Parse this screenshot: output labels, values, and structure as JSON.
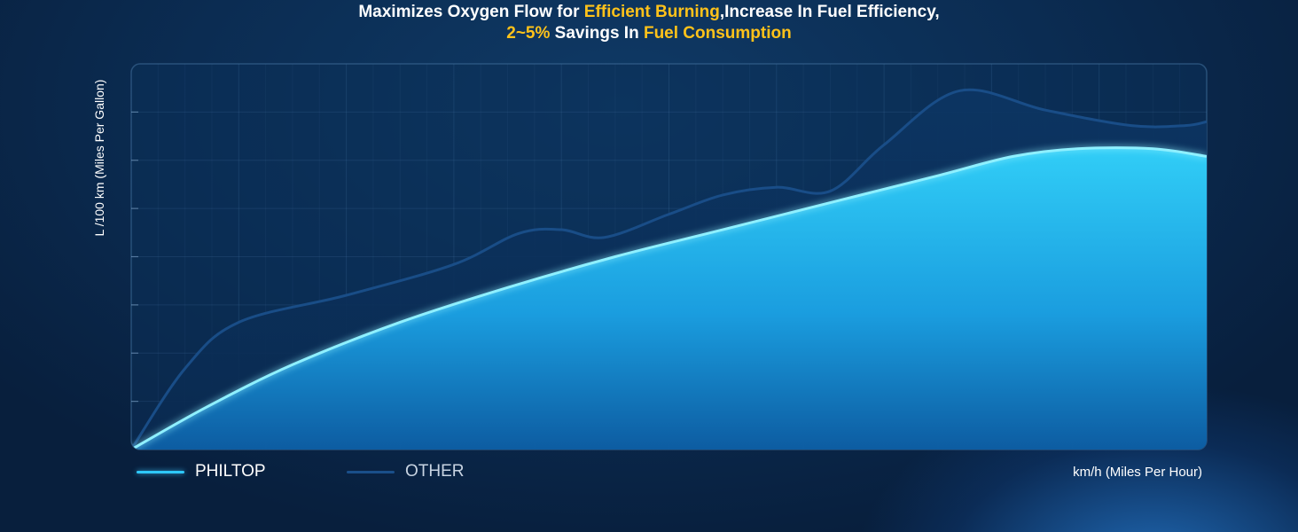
{
  "headline": {
    "line1": [
      {
        "text": "Maximizes Oxygen Flow for ",
        "highlight": false
      },
      {
        "text": "Efficient Burning",
        "highlight": true
      },
      {
        "text": ",Increase In Fuel Efficiency,",
        "highlight": false
      }
    ],
    "line2": [
      {
        "text": "2~5%",
        "highlight": true
      },
      {
        "text": " Savings In ",
        "highlight": false
      },
      {
        "text": "Fuel Consumption",
        "highlight": true
      }
    ]
  },
  "colors": {
    "highlight": "#ffc21a",
    "philtop": "#2ec8ff",
    "other": "#1a4f8a"
  },
  "chart_data": {
    "type": "area",
    "xlabel": "km/h (Miles Per Hour)",
    "ylabel": "L /100 km (Miles Per Gallon)",
    "xlim": [
      0,
      100
    ],
    "ylim": [
      0,
      100
    ],
    "grid": true,
    "legend_position": "bottom-left",
    "series": [
      {
        "name": "PHILTOP",
        "x": [
          0,
          7,
          15,
          25,
          35,
          45,
          55,
          65,
          75,
          82,
          88,
          95,
          100
        ],
        "y": [
          0,
          11,
          22,
          33,
          42,
          50,
          57,
          64,
          71,
          76,
          78,
          78,
          76
        ]
      },
      {
        "name": "OTHER",
        "x": [
          0,
          5,
          10,
          20,
          30,
          36,
          40,
          44,
          50,
          55,
          60,
          65,
          70,
          77,
          85,
          93,
          98,
          100
        ],
        "y": [
          0,
          21,
          33,
          40,
          48,
          56,
          57,
          55,
          61,
          66,
          68,
          67,
          79,
          93,
          88,
          84,
          84,
          85
        ]
      }
    ]
  }
}
